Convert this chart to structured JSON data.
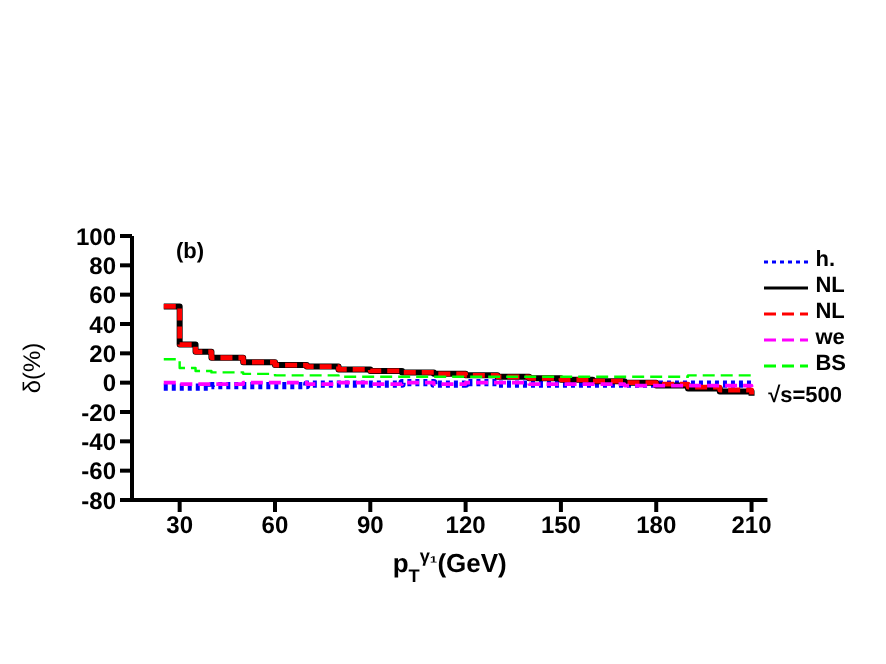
{
  "chart_data": {
    "type": "step",
    "xlabel": "p$_{T}$$^{γ₁}$(GeV)",
    "ylabel": "δ(%)",
    "annotations": [
      "(b)",
      "√s=500"
    ],
    "x": [
      25,
      30,
      35,
      40,
      50,
      60,
      70,
      80,
      90,
      100,
      110,
      120,
      130,
      140,
      150,
      160,
      170,
      180,
      190,
      200,
      210
    ],
    "series": [
      {
        "name": "h.",
        "color": "#0000ff",
        "line_style": "dotted",
        "values": [
          -3,
          -3,
          -3,
          -2,
          -2,
          -2,
          -1,
          -1,
          -1,
          0,
          -1,
          0,
          -1,
          -1,
          -1,
          -1,
          -1,
          -1,
          -1,
          -1,
          -2
        ]
      },
      {
        "name": "NL",
        "color": "#000000",
        "line_style": "solid",
        "values": [
          52,
          26,
          21,
          17,
          14,
          12,
          11,
          9,
          8,
          7,
          6,
          5,
          4,
          3,
          2,
          1,
          0,
          -2,
          -4,
          -6,
          -9
        ]
      },
      {
        "name": "NL",
        "color": "#ff0000",
        "line_style": "dashed",
        "values": [
          52,
          26,
          21,
          17,
          14,
          12,
          11,
          9,
          8,
          7,
          6,
          5,
          4,
          3,
          2,
          1,
          0,
          -1,
          -3,
          -5,
          -8
        ]
      },
      {
        "name": "we",
        "color": "#ff00ff",
        "line_style": "dashed",
        "values": [
          0,
          -1,
          -1,
          -1,
          0,
          0,
          -1,
          0,
          -1,
          0,
          -1,
          0,
          0,
          -1,
          -1,
          -1,
          -2,
          -2,
          -2,
          -2,
          -3
        ]
      },
      {
        "name": "BS",
        "color": "#00ff00",
        "line_style": "dashed",
        "values": [
          16,
          10,
          8,
          7,
          6,
          5,
          5,
          4,
          4,
          4,
          4,
          4,
          4,
          4,
          4,
          4,
          4,
          4,
          5,
          5,
          5
        ]
      }
    ],
    "xlim": [
      15,
      215
    ],
    "xticks": [
      30,
      60,
      90,
      120,
      150,
      180,
      210
    ],
    "ylim": [
      -80,
      100
    ],
    "yticks": [
      -80,
      -60,
      -40,
      -20,
      0,
      20,
      40,
      60,
      80,
      100
    ],
    "legend": "top right"
  }
}
